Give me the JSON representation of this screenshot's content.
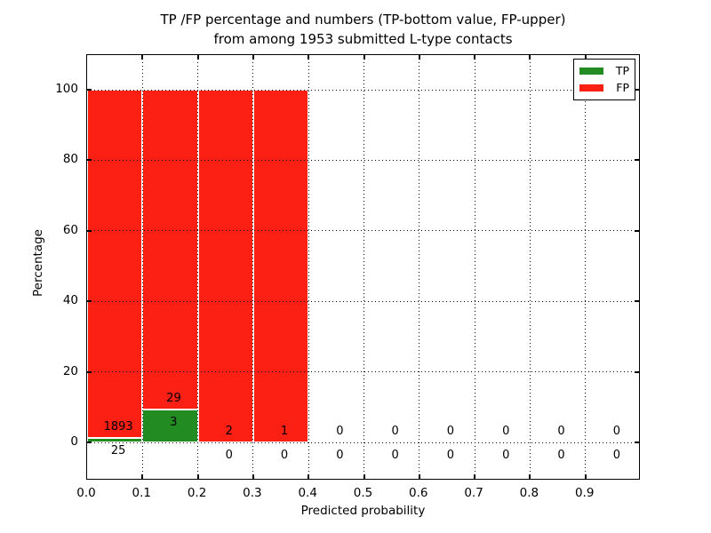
{
  "title": {
    "line1": "TP /FP percentage and numbers (TP-bottom value, FP-upper)",
    "line2": "from among 1953 submitted L-type contacts"
  },
  "axes": {
    "xlabel": "Predicted probability",
    "ylabel": "Percentage"
  },
  "colors": {
    "tp_green": "#228b22",
    "fp_red": "#fb1f14",
    "axis": "#000000",
    "background": "#ffffff"
  },
  "chart_data": {
    "type": "bar",
    "stacked": true,
    "title": "TP /FP percentage and numbers (TP-bottom value, FP-upper) from among 1953 submitted L-type contacts",
    "xlabel": "Predicted probability",
    "ylabel": "Percentage",
    "total_submitted_contacts": 1953,
    "xlim": [
      0.0,
      1.0
    ],
    "ylim": [
      -11,
      110
    ],
    "x_tick_labels": [
      "0.0",
      "0.1",
      "0.2",
      "0.3",
      "0.4",
      "0.5",
      "0.6",
      "0.7",
      "0.8",
      "0.9"
    ],
    "y_tick_values": [
      0,
      20,
      40,
      60,
      80,
      100
    ],
    "grid": "dotted, both axes, drawn above bars",
    "bar_edge_color": "#ffffff",
    "legend": {
      "position": "upper right",
      "entries": [
        {
          "label": "TP",
          "color": "#228b22"
        },
        {
          "label": "FP",
          "color": "#fb1f14"
        }
      ]
    },
    "bins": [
      {
        "range": "0.0-0.1",
        "tp": 25,
        "fp": 1893,
        "tp_pct": 1.3,
        "fp_pct": 98.7
      },
      {
        "range": "0.1-0.2",
        "tp": 3,
        "fp": 29,
        "tp_pct": 9.38,
        "fp_pct": 90.62
      },
      {
        "range": "0.2-0.3",
        "tp": 0,
        "fp": 2,
        "tp_pct": 0,
        "fp_pct": 100
      },
      {
        "range": "0.3-0.4",
        "tp": 0,
        "fp": 1,
        "tp_pct": 0,
        "fp_pct": 100
      },
      {
        "range": "0.4-0.5",
        "tp": 0,
        "fp": 0,
        "tp_pct": 0,
        "fp_pct": 0
      },
      {
        "range": "0.5-0.6",
        "tp": 0,
        "fp": 0,
        "tp_pct": 0,
        "fp_pct": 0
      },
      {
        "range": "0.6-0.7",
        "tp": 0,
        "fp": 0,
        "tp_pct": 0,
        "fp_pct": 0
      },
      {
        "range": "0.7-0.8",
        "tp": 0,
        "fp": 0,
        "tp_pct": 0,
        "fp_pct": 0
      },
      {
        "range": "0.8-0.9",
        "tp": 0,
        "fp": 0,
        "tp_pct": 0,
        "fp_pct": 0
      },
      {
        "range": "0.9-1.0",
        "tp": 0,
        "fp": 0,
        "tp_pct": 0,
        "fp_pct": 0
      }
    ]
  }
}
